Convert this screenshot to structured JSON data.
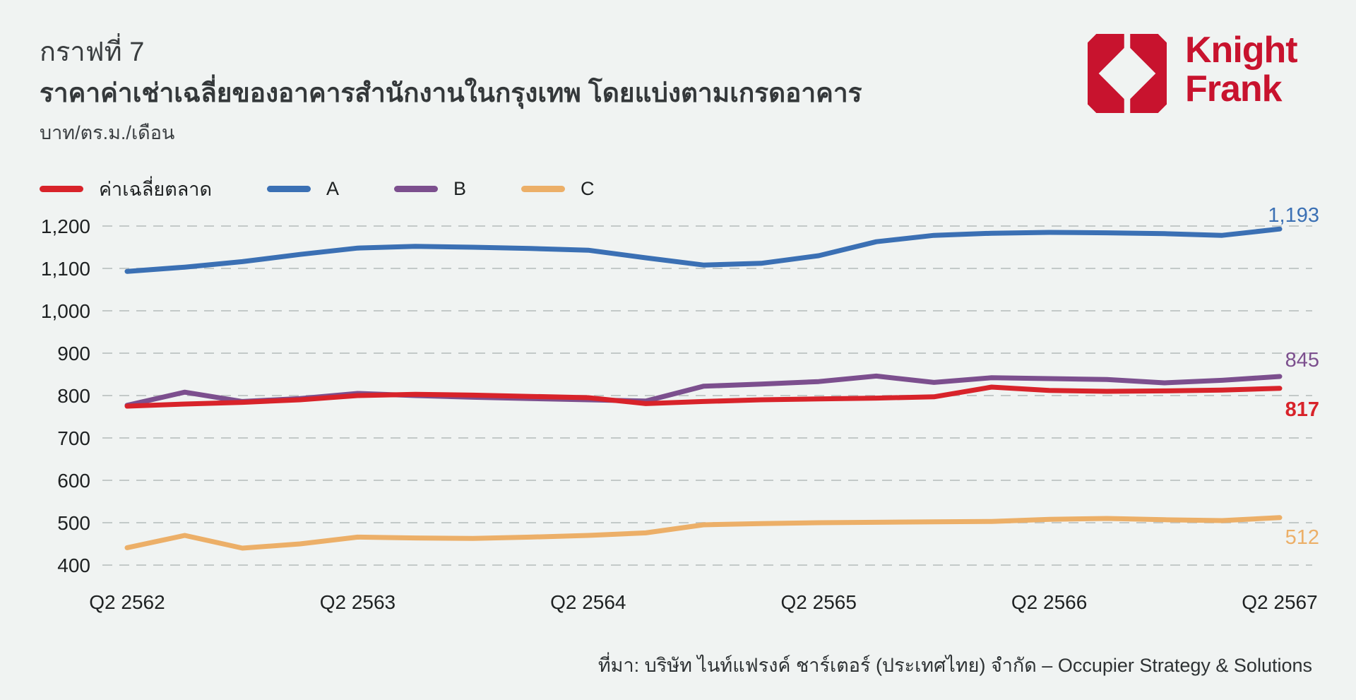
{
  "header": {
    "title": "กราฟที่ 7",
    "subtitle": "ราคาค่าเช่าเฉลี่ยของอาคารสำนักงานในกรุงเทพ โดยแบ่งตามเกรดอาคาร",
    "unit": "บาท/ตร.ม./เดือน"
  },
  "logo": {
    "line1": "Knight",
    "line2": "Frank",
    "color": "#C8132E"
  },
  "legend": {
    "items": [
      {
        "label": "ค่าเฉลี่ยตลาด",
        "color": "#D8232A"
      },
      {
        "label": "A",
        "color": "#3B70B4"
      },
      {
        "label": "B",
        "color": "#7C4F8E"
      },
      {
        "label": "C",
        "color": "#ECAF68"
      }
    ]
  },
  "chart_data": {
    "type": "line",
    "title": "ราคาค่าเช่าเฉลี่ยของอาคารสำนักงานในกรุงเทพ โดยแบ่งตามเกรดอาคาร",
    "ylabel": "บาท/ตร.ม./เดือน",
    "x_tick_labels": [
      "Q2 2562",
      "Q2 2563",
      "Q2 2564",
      "Q2 2565",
      "Q2  2566",
      "Q2 2567"
    ],
    "x_tick_point_indices": [
      0,
      4,
      8,
      12,
      16,
      20
    ],
    "n_points": 21,
    "x_unit": "quarter",
    "ylim": [
      400,
      1200
    ],
    "y_ticks": [
      400,
      500,
      600,
      700,
      800,
      900,
      1000,
      1100,
      1200
    ],
    "grid": "horizontal-dashed",
    "legend_position": "top-left",
    "series": [
      {
        "name": "C",
        "color": "#ECAF68",
        "end_label": "512",
        "end_label_bold": false,
        "end_label_offset": 37,
        "values": [
          441,
          470,
          440,
          450,
          466,
          464,
          463,
          466,
          470,
          476,
          495,
          498,
          500,
          501,
          502,
          503,
          508,
          510,
          507,
          505,
          512
        ]
      },
      {
        "name": "B",
        "color": "#7C4F8E",
        "end_label": "845",
        "end_label_bold": false,
        "end_label_offset": -14,
        "values": [
          777,
          808,
          786,
          793,
          805,
          800,
          796,
          793,
          790,
          787,
          822,
          827,
          833,
          846,
          831,
          842,
          840,
          838,
          830,
          836,
          845
        ]
      },
      {
        "name": "A",
        "color": "#3B70B4",
        "end_label": "1,193",
        "end_label_bold": false,
        "end_label_offset": -10,
        "values": [
          1093,
          1103,
          1116,
          1133,
          1148,
          1152,
          1150,
          1147,
          1143,
          1125,
          1108,
          1112,
          1130,
          1163,
          1178,
          1183,
          1185,
          1184,
          1182,
          1178,
          1193
        ]
      },
      {
        "name": "ค่าเฉลี่ยตลาด",
        "color": "#D8232A",
        "end_label": "817",
        "end_label_bold": true,
        "end_label_offset": 39,
        "values": [
          775,
          780,
          784,
          790,
          800,
          803,
          801,
          798,
          795,
          781,
          786,
          790,
          792,
          794,
          797,
          820,
          812,
          810,
          811,
          813,
          817
        ]
      }
    ]
  },
  "source": "ที่มา: บริษัท ไนท์แฟรงค์ ชาร์เตอร์ (ประเทศไทย) จำกัด – Occupier Strategy & Solutions",
  "colors": {
    "background": "#F0F3F2",
    "grid": "#C3C9C8",
    "title_text": "#393D3F",
    "axis_text": "#1E2122",
    "brand_red": "#C8132E"
  }
}
